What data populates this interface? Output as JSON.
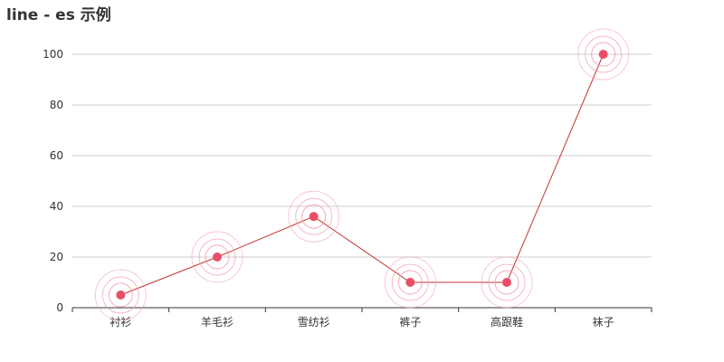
{
  "chart_data": {
    "type": "line",
    "title": "line - es 示例",
    "categories": [
      "衬衫",
      "羊毛衫",
      "雪纺衫",
      "裤子",
      "高跟鞋",
      "袜子"
    ],
    "series": [
      {
        "values": [
          5,
          20,
          36,
          10,
          10,
          100
        ]
      }
    ],
    "ylim": [
      0,
      100
    ],
    "yticks": [
      0,
      20,
      40,
      60,
      80,
      100
    ],
    "grid": true,
    "effect_scatter": true,
    "colors": {
      "line": "#c23531",
      "point": "#ea4e67",
      "ripple": "#f29bab",
      "grid": "#cccccc",
      "axis": "#333333"
    }
  }
}
